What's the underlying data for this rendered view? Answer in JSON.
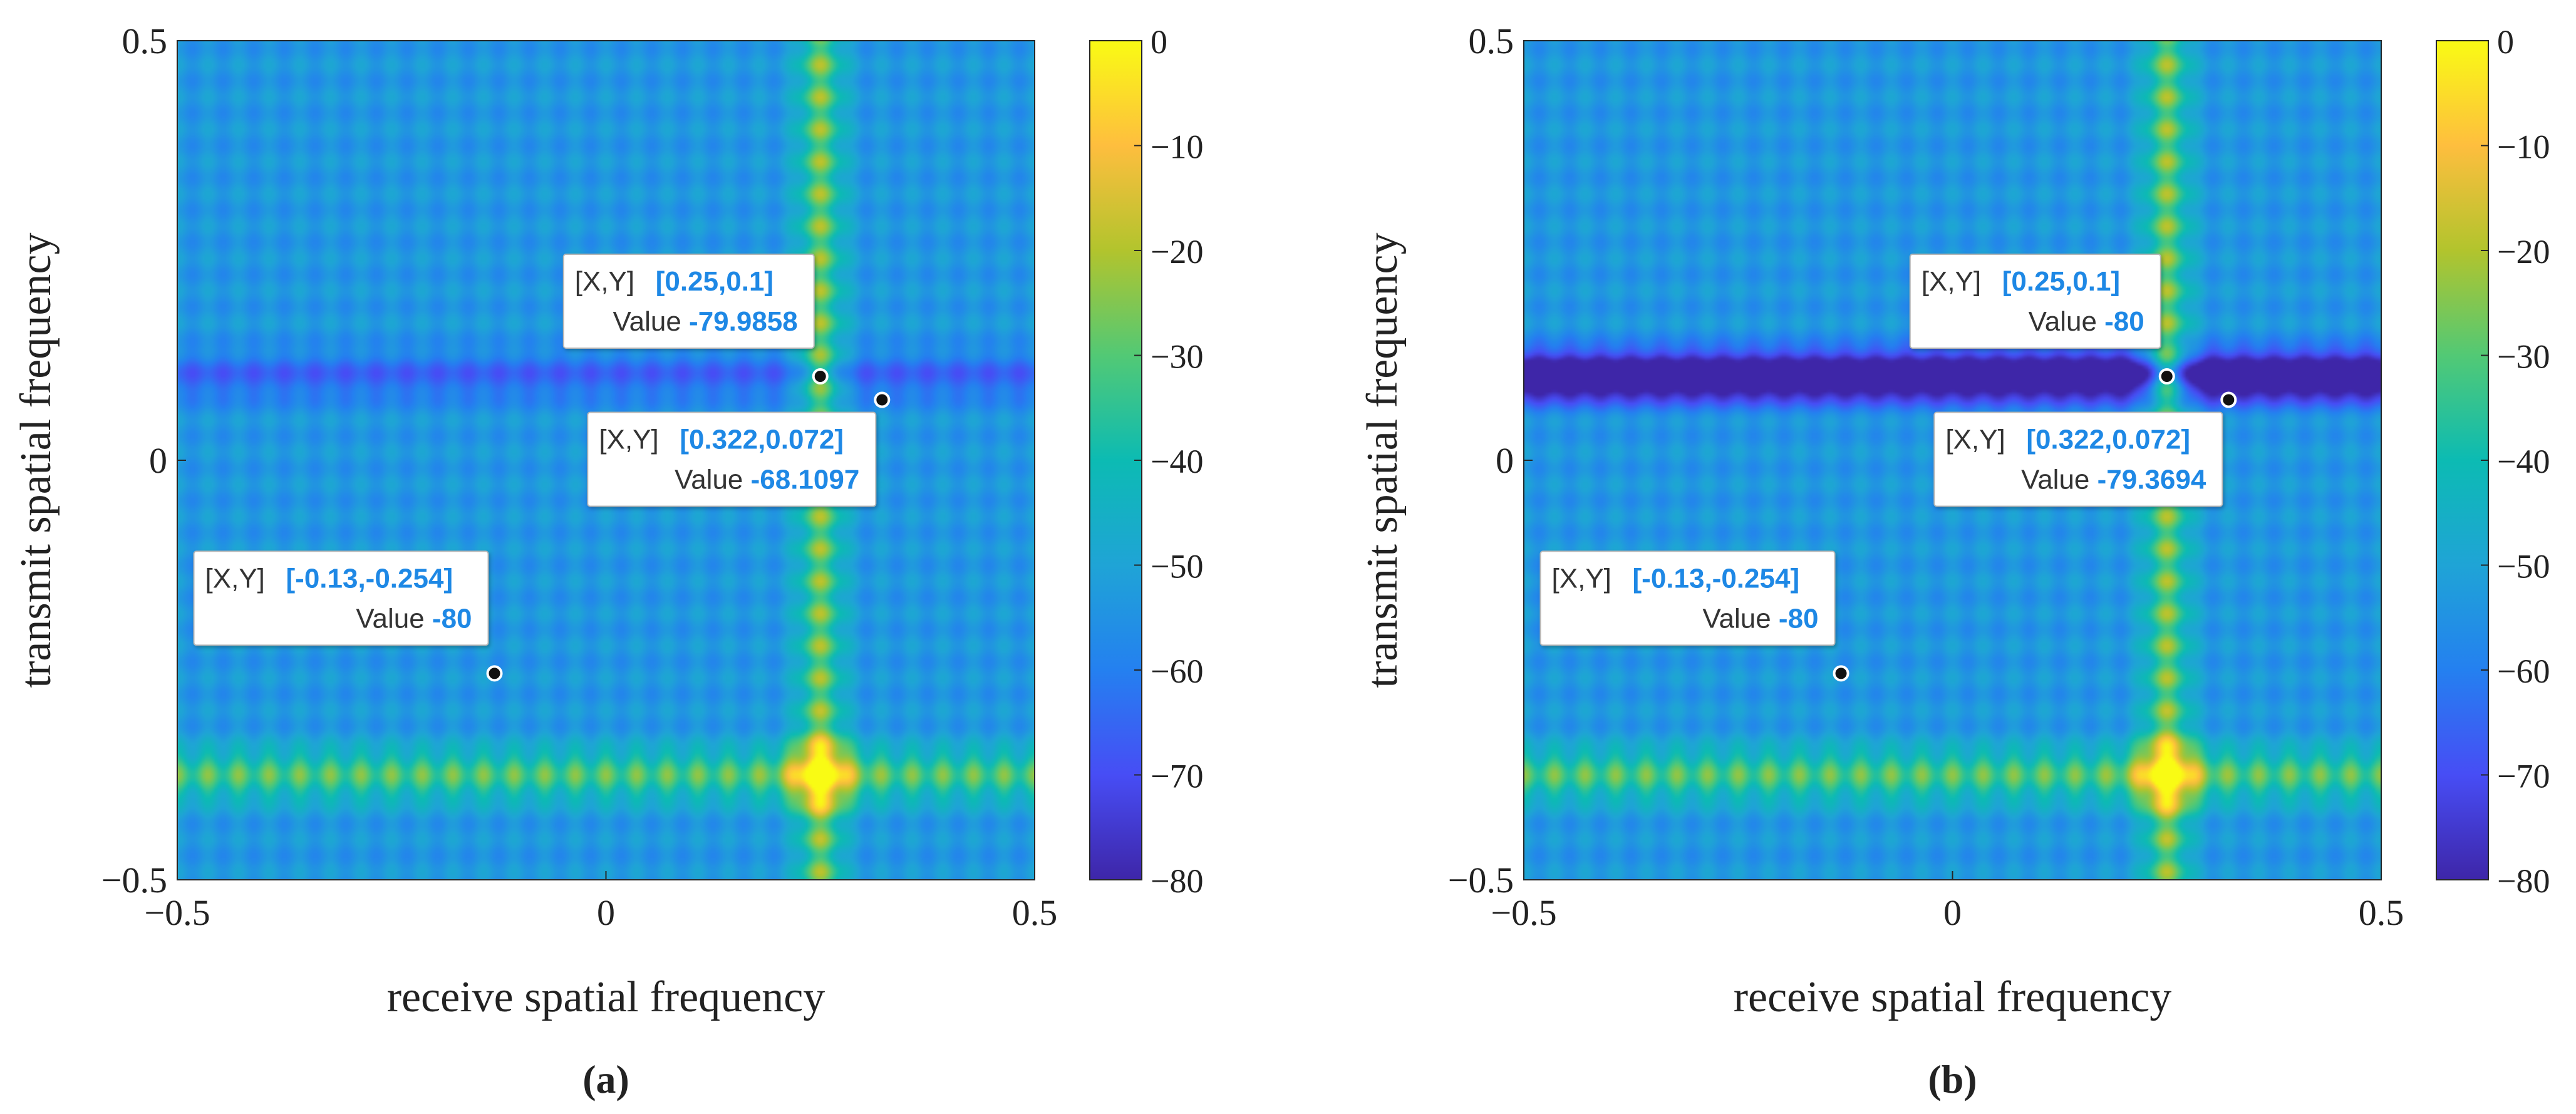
{
  "chart_data": [
    {
      "type": "heatmap",
      "panel_label": "(a)",
      "panel_letter": "a",
      "xlabel": "receive spatial frequency",
      "ylabel": "transmit spatial frequency",
      "xlim": [
        -0.5,
        0.5
      ],
      "ylim": [
        -0.5,
        0.5
      ],
      "x_ticks": [
        {
          "value": -0.5,
          "label": "−0.5"
        },
        {
          "value": 0,
          "label": "0"
        },
        {
          "value": 0.5,
          "label": "0.5"
        }
      ],
      "y_ticks": [
        {
          "value": 0.5,
          "label": "0.5"
        },
        {
          "value": 0,
          "label": "0"
        },
        {
          "value": -0.5,
          "label": "−0.5"
        }
      ],
      "colorbar": {
        "range": [
          -80,
          0
        ],
        "ticks": [
          {
            "value": 0,
            "label": "0"
          },
          {
            "value": -10,
            "label": "−10"
          },
          {
            "value": -20,
            "label": "−20"
          },
          {
            "value": -30,
            "label": "−30"
          },
          {
            "value": -40,
            "label": "−40"
          },
          {
            "value": -50,
            "label": "−50"
          },
          {
            "value": -60,
            "label": "−60"
          },
          {
            "value": -70,
            "label": "−70"
          },
          {
            "value": -80,
            "label": "−80"
          }
        ]
      },
      "main_peak": {
        "x": 0.25,
        "y": -0.375
      },
      "null_line_y": 0.1,
      "null_depth": 0.15,
      "datatips": [
        {
          "x": 0.25,
          "y": 0.1,
          "xy_label": "[X,Y]",
          "xy_text": "[0.25,0.1]",
          "value_label": "Value",
          "value_text": "-79.9858"
        },
        {
          "x": 0.322,
          "y": 0.072,
          "xy_label": "[X,Y]",
          "xy_text": "[0.322,0.072]",
          "value_label": "Value",
          "value_text": "-68.1097"
        },
        {
          "x": -0.13,
          "y": -0.254,
          "xy_label": "[X,Y]",
          "xy_text": "[-0.13,-0.254]",
          "value_label": "Value",
          "value_text": "-80"
        }
      ]
    },
    {
      "type": "heatmap",
      "panel_label": "(b)",
      "panel_letter": "b",
      "xlabel": "receive spatial frequency",
      "ylabel": "transmit spatial frequency",
      "xlim": [
        -0.5,
        0.5
      ],
      "ylim": [
        -0.5,
        0.5
      ],
      "x_ticks": [
        {
          "value": -0.5,
          "label": "−0.5"
        },
        {
          "value": 0,
          "label": "0"
        },
        {
          "value": 0.5,
          "label": "0.5"
        }
      ],
      "y_ticks": [
        {
          "value": 0.5,
          "label": "0.5"
        },
        {
          "value": 0,
          "label": "0"
        },
        {
          "value": -0.5,
          "label": "−0.5"
        }
      ],
      "colorbar": {
        "range": [
          -80,
          0
        ],
        "ticks": [
          {
            "value": 0,
            "label": "0"
          },
          {
            "value": -10,
            "label": "−10"
          },
          {
            "value": -20,
            "label": "−20"
          },
          {
            "value": -30,
            "label": "−30"
          },
          {
            "value": -40,
            "label": "−40"
          },
          {
            "value": -50,
            "label": "−50"
          },
          {
            "value": -60,
            "label": "−60"
          },
          {
            "value": -70,
            "label": "−70"
          },
          {
            "value": -80,
            "label": "−80"
          }
        ]
      },
      "main_peak": {
        "x": 0.25,
        "y": -0.375
      },
      "null_line_y": 0.1,
      "null_depth": 0.55,
      "datatips": [
        {
          "x": 0.25,
          "y": 0.1,
          "xy_label": "[X,Y]",
          "xy_text": "[0.25,0.1]",
          "value_label": "Value",
          "value_text": "-80"
        },
        {
          "x": 0.322,
          "y": 0.072,
          "xy_label": "[X,Y]",
          "xy_text": "[0.322,0.072]",
          "value_label": "Value",
          "value_text": "-79.3694"
        },
        {
          "x": -0.13,
          "y": -0.254,
          "xy_label": "[X,Y]",
          "xy_text": "[-0.13,-0.254]",
          "value_label": "Value",
          "value_text": "-80"
        }
      ]
    }
  ],
  "colors": {
    "datatip_text": "#333333",
    "datatip_value": "#1e88e5",
    "background": "#ffffff"
  }
}
